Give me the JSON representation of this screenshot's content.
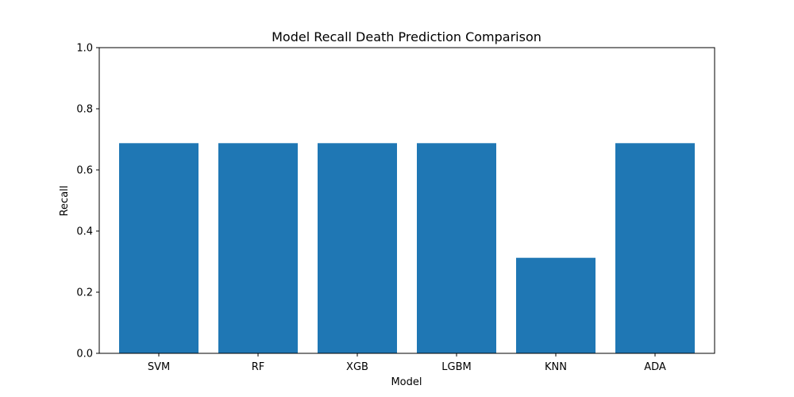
{
  "chart_data": {
    "type": "bar",
    "title": "Model Recall Death Prediction Comparison",
    "xlabel": "Model",
    "ylabel": "Recall",
    "categories": [
      "SVM",
      "RF",
      "XGB",
      "LGBM",
      "KNN",
      "ADA"
    ],
    "values": [
      0.6875,
      0.6875,
      0.6875,
      0.6875,
      0.3125,
      0.6875
    ],
    "ylim": [
      0,
      1.0
    ],
    "yticks": [
      "0.0",
      "0.2",
      "0.4",
      "0.6",
      "0.8",
      "1.0"
    ],
    "grid": false,
    "bar_color": "#1f77b4"
  }
}
